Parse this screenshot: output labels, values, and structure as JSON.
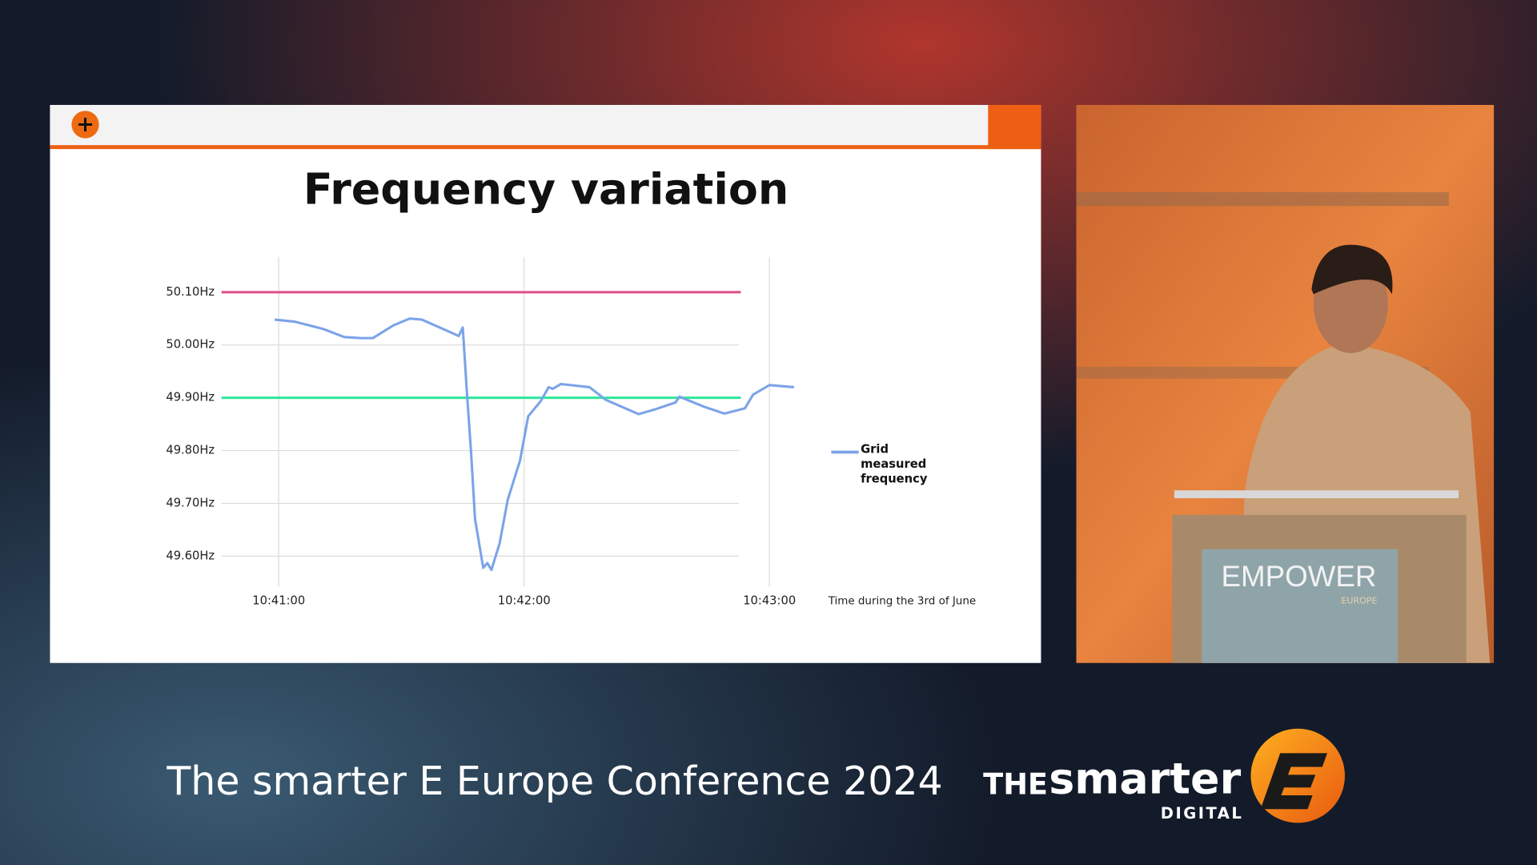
{
  "chart_data": {
    "type": "line",
    "title": "Frequency variation",
    "x_label": "Time during the 3rd of June",
    "x": [
      "10:40:59",
      "10:41:04",
      "10:41:11",
      "10:41:16",
      "10:41:20",
      "10:41:23",
      "10:41:28",
      "10:41:32",
      "10:41:35",
      "10:41:42",
      "10:41:44",
      "10:41:45",
      "10:41:46",
      "10:41:47",
      "10:41:48",
      "10:41:50",
      "10:41:51",
      "10:41:52",
      "10:41:54",
      "10:41:56",
      "10:41:59",
      "10:42:01",
      "10:42:04",
      "10:42:06",
      "10:42:07",
      "10:42:09",
      "10:42:16",
      "10:42:20",
      "10:42:28",
      "10:42:32",
      "10:42:37",
      "10:42:38",
      "10:42:44",
      "10:42:49",
      "10:42:54",
      "10:42:56",
      "10:43:00",
      "10:43:06"
    ],
    "series": [
      {
        "name": "Grid measured frequency",
        "color": "#7ba3e8",
        "values": [
          50.048,
          50.044,
          50.03,
          50.015,
          50.013,
          50.013,
          50.037,
          50.05,
          50.048,
          50.024,
          50.017,
          50.033,
          49.911,
          49.8,
          49.67,
          49.578,
          49.587,
          49.574,
          49.624,
          49.707,
          49.781,
          49.865,
          49.893,
          49.92,
          49.917,
          49.926,
          49.92,
          49.896,
          49.869,
          49.878,
          49.891,
          49.902,
          49.883,
          49.87,
          49.88,
          49.906,
          49.924,
          49.92
        ]
      }
    ],
    "reference_lines": [
      {
        "value": 50.1,
        "color": "#e0528a",
        "x": [
          "10:40:46",
          "10:42:53"
        ]
      },
      {
        "value": 49.9,
        "color": "#2ee89a",
        "x": [
          "10:40:46",
          "10:42:53"
        ]
      }
    ],
    "xlim": [
      "10:40:46",
      "10:43:06"
    ],
    "xticks": [
      "10:41:00",
      "10:42:00",
      "10:43:00"
    ],
    "ylim": [
      49.55,
      50.15
    ],
    "yticks": [
      {
        "value": 49.6,
        "label": "49.60Hz"
      },
      {
        "value": 49.7,
        "label": "49.70Hz"
      },
      {
        "value": 49.8,
        "label": "49.80Hz"
      },
      {
        "value": 49.9,
        "label": "49.90Hz"
      },
      {
        "value": 50.0,
        "label": "50.00Hz"
      },
      {
        "value": 50.1,
        "label": "50.10Hz"
      }
    ],
    "grid": true,
    "legend": "right"
  },
  "footer": {
    "conference": "The smarter E Europe Conference 2024",
    "logo_the": "THE",
    "logo_smarter": "smarter",
    "logo_digital": "DIGITAL"
  },
  "podium": {
    "brand": "EMPOWER",
    "sub": "EUROPE"
  }
}
